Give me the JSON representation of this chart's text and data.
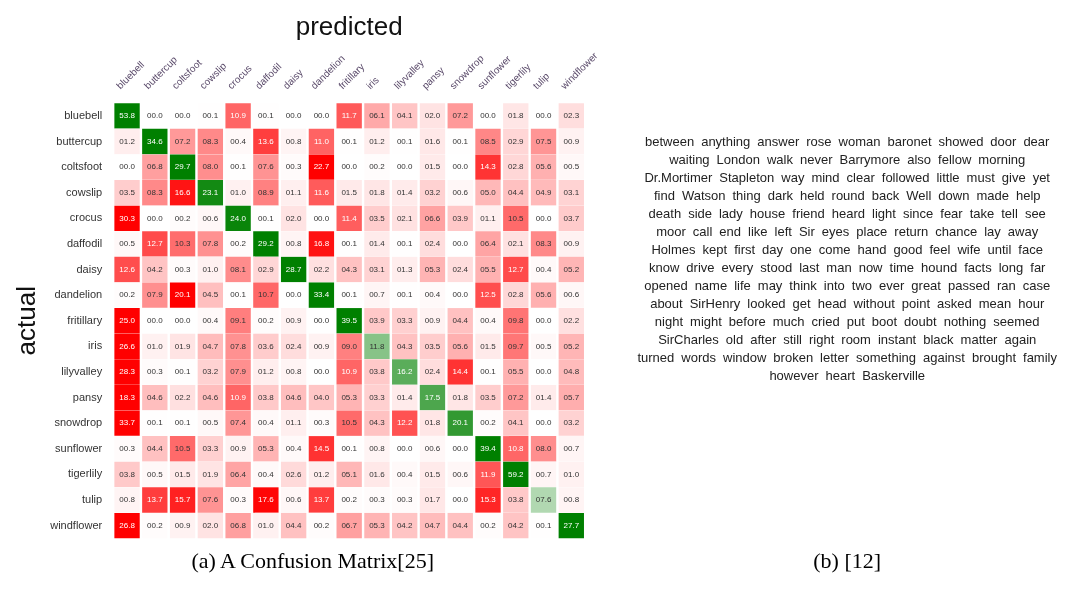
{
  "chart_data": [
    {
      "type": "heatmap",
      "xlabel": "predicted",
      "ylabel": "actual",
      "categories": [
        "bluebell",
        "buttercup",
        "coltsfoot",
        "cowslip",
        "crocus",
        "daffodil",
        "daisy",
        "dandelion",
        "fritillary",
        "iris",
        "lilyvalley",
        "pansy",
        "snowdrop",
        "sunflower",
        "tigerlily",
        "tulip",
        "windflower"
      ],
      "y_categories": [
        "bluebell",
        "buttercup",
        "coltsfoot",
        "cowslip",
        "crocus",
        "daffodil",
        "daisy",
        "dandelion",
        "fritillary",
        "iris",
        "lilyvalley",
        "pansy",
        "snowdrop",
        "sunflower",
        "tigerlily",
        "tulip",
        "windflower"
      ],
      "cells": [
        [
          53.8,
          0.0,
          0.0,
          0.1,
          10.9,
          0.1,
          0.0,
          0.0,
          11.7,
          6.1,
          4.1,
          2.0,
          7.2,
          0.0,
          1.8,
          0.0,
          2.3
        ],
        [
          1.2,
          34.6,
          7.2,
          8.3,
          0.4,
          13.6,
          0.8,
          11.0,
          0.1,
          1.2,
          0.1,
          1.6,
          0.1,
          8.5,
          2.9,
          7.5,
          0.9
        ],
        [
          0.0,
          6.8,
          29.7,
          8.0,
          0.1,
          7.6,
          0.3,
          22.7,
          0.0,
          0.2,
          0.0,
          1.5,
          0.0,
          14.3,
          2.8,
          5.6,
          0.5
        ],
        [
          3.5,
          8.3,
          16.6,
          23.1,
          1.0,
          8.9,
          1.1,
          11.6,
          1.5,
          1.8,
          1.4,
          3.2,
          0.6,
          5.0,
          4.4,
          4.9,
          3.1
        ],
        [
          30.3,
          0.0,
          0.2,
          0.6,
          24.0,
          0.1,
          2.0,
          0.0,
          11.4,
          3.5,
          2.1,
          6.6,
          3.9,
          1.1,
          10.5,
          0.0,
          3.7
        ],
        [
          0.5,
          12.7,
          10.3,
          7.8,
          0.2,
          29.2,
          0.8,
          16.8,
          0.1,
          1.4,
          0.1,
          2.4,
          0.0,
          6.4,
          2.1,
          8.3,
          0.9
        ],
        [
          12.6,
          4.2,
          0.3,
          1.0,
          8.1,
          2.9,
          28.7,
          2.2,
          4.3,
          3.1,
          1.3,
          5.3,
          2.4,
          5.5,
          12.7,
          0.4,
          5.2
        ],
        [
          0.2,
          7.9,
          20.1,
          4.5,
          0.1,
          10.7,
          0.0,
          33.4,
          0.1,
          0.7,
          0.1,
          0.4,
          0.0,
          12.5,
          2.8,
          5.6,
          0.6
        ],
        [
          25.0,
          0.0,
          0.0,
          0.4,
          9.1,
          0.2,
          0.9,
          0.0,
          39.5,
          3.9,
          3.3,
          0.9,
          4.4,
          0.4,
          9.8,
          0.0,
          2.2
        ],
        [
          26.6,
          1.0,
          1.9,
          4.7,
          7.8,
          3.6,
          2.4,
          0.9,
          9.0,
          11.8,
          4.3,
          3.5,
          5.6,
          1.5,
          9.7,
          0.5,
          5.2
        ],
        [
          28.3,
          0.3,
          0.1,
          3.2,
          7.9,
          1.2,
          0.8,
          0.0,
          10.9,
          3.8,
          16.2,
          2.4,
          14.4,
          0.1,
          5.5,
          0.0,
          4.8
        ],
        [
          18.3,
          4.6,
          2.2,
          4.6,
          10.9,
          3.8,
          4.6,
          4.0,
          5.3,
          3.3,
          1.4,
          17.5,
          1.8,
          3.5,
          7.2,
          1.4,
          5.7
        ],
        [
          33.7,
          0.1,
          0.1,
          0.5,
          7.4,
          0.4,
          1.1,
          0.3,
          10.5,
          4.3,
          12.2,
          1.8,
          20.1,
          0.2,
          4.1,
          0.0,
          3.2
        ],
        [
          0.3,
          4.4,
          10.5,
          3.3,
          0.9,
          5.3,
          0.4,
          14.5,
          0.1,
          0.8,
          0.0,
          0.6,
          0.0,
          39.4,
          10.8,
          8.0,
          0.7
        ],
        [
          3.8,
          0.5,
          1.5,
          1.9,
          6.4,
          0.4,
          2.6,
          1.2,
          5.1,
          1.6,
          0.4,
          1.5,
          0.6,
          11.9,
          59.2,
          0.7,
          1.0
        ],
        [
          0.8,
          13.7,
          15.7,
          7.6,
          0.3,
          17.6,
          0.6,
          13.7,
          0.2,
          0.3,
          0.3,
          1.7,
          0.0,
          15.3,
          3.8,
          7.6,
          0.8
        ],
        [
          26.8,
          0.2,
          0.9,
          2.0,
          6.8,
          1.0,
          4.4,
          0.2,
          6.7,
          5.3,
          4.2,
          4.7,
          4.4,
          0.2,
          4.2,
          0.1,
          27.7
        ]
      ],
      "cell_labels": [
        [
          "53.8",
          "00.0",
          "00.0",
          "00.1",
          "10.9",
          "00.1",
          "00.0",
          "00.0",
          "11.7",
          "06.1",
          "04.1",
          "02.0",
          "07.2",
          "00.0",
          "01.8",
          "00.0",
          "02.3"
        ],
        [
          "01.2",
          "34.6",
          "07.2",
          "08.3",
          "00.4",
          "13.6",
          "00.8",
          "11.0",
          "00.1",
          "01.2",
          "00.1",
          "01.6",
          "00.1",
          "08.5",
          "02.9",
          "07.5",
          "00.9"
        ],
        [
          "00.0",
          "06.8",
          "29.7",
          "08.0",
          "00.1",
          "07.6",
          "00.3",
          "22.7",
          "00.0",
          "00.2",
          "00.0",
          "01.5",
          "00.0",
          "14.3",
          "02.8",
          "05.6",
          "00.5"
        ],
        [
          "03.5",
          "08.3",
          "16.6",
          "23.1",
          "01.0",
          "08.9",
          "01.1",
          "11.6",
          "01.5",
          "01.8",
          "01.4",
          "03.2",
          "00.6",
          "05.0",
          "04.4",
          "04.9",
          "03.1"
        ],
        [
          "30.3",
          "00.0",
          "00.2",
          "00.6",
          "24.0",
          "00.1",
          "02.0",
          "00.0",
          "11.4",
          "03.5",
          "02.1",
          "06.6",
          "03.9",
          "01.1",
          "10.5",
          "00.0",
          "03.7"
        ],
        [
          "00.5",
          "12.7",
          "10.3",
          "07.8",
          "00.2",
          "29.2",
          "00.8",
          "16.8",
          "00.1",
          "01.4",
          "00.1",
          "02.4",
          "00.0",
          "06.4",
          "02.1",
          "08.3",
          "00.9"
        ],
        [
          "12.6",
          "04.2",
          "00.3",
          "01.0",
          "08.1",
          "02.9",
          "28.7",
          "02.2",
          "04.3",
          "03.1",
          "01.3",
          "05.3",
          "02.4",
          "05.5",
          "12.7",
          "00.4",
          "05.2"
        ],
        [
          "00.2",
          "07.9",
          "20.1",
          "04.5",
          "00.1",
          "10.7",
          "00.0",
          "33.4",
          "00.1",
          "00.7",
          "00.1",
          "00.4",
          "00.0",
          "12.5",
          "02.8",
          "05.6",
          "00.6"
        ],
        [
          "25.0",
          "00.0",
          "00.0",
          "00.4",
          "09.1",
          "00.2",
          "00.9",
          "00.0",
          "39.5",
          "03.9",
          "03.3",
          "00.9",
          "04.4",
          "00.4",
          "09.8",
          "00.0",
          "02.2"
        ],
        [
          "26.6",
          "01.0",
          "01.9",
          "04.7",
          "07.8",
          "03.6",
          "02.4",
          "00.9",
          "09.0",
          "11.8",
          "04.3",
          "03.5",
          "05.6",
          "01.5",
          "09.7",
          "00.5",
          "05.2"
        ],
        [
          "28.3",
          "00.3",
          "00.1",
          "03.2",
          "07.9",
          "01.2",
          "00.8",
          "00.0",
          "10.9",
          "03.8",
          "16.2",
          "02.4",
          "14.4",
          "00.1",
          "05.5",
          "00.0",
          "04.8"
        ],
        [
          "18.3",
          "04.6",
          "02.2",
          "04.6",
          "10.9",
          "03.8",
          "04.6",
          "04.0",
          "05.3",
          "03.3",
          "01.4",
          "17.5",
          "01.8",
          "03.5",
          "07.2",
          "01.4",
          "05.7"
        ],
        [
          "33.7",
          "00.1",
          "00.1",
          "00.5",
          "07.4",
          "00.4",
          "01.1",
          "00.3",
          "10.5",
          "04.3",
          "12.2",
          "01.8",
          "20.1",
          "00.2",
          "04.1",
          "00.0",
          "03.2"
        ],
        [
          "00.3",
          "04.4",
          "10.5",
          "03.3",
          "00.9",
          "05.3",
          "00.4",
          "14.5",
          "00.1",
          "00.8",
          "00.0",
          "00.6",
          "00.0",
          "39.4",
          "10.8",
          "08.0",
          "00.7"
        ],
        [
          "03.8",
          "00.5",
          "01.5",
          "01.9",
          "06.4",
          "00.4",
          "02.6",
          "01.2",
          "05.1",
          "01.6",
          "00.4",
          "01.5",
          "00.6",
          "11.9",
          "59.2",
          "00.7",
          "01.0"
        ],
        [
          "00.8",
          "13.7",
          "15.7",
          "07.6",
          "00.3",
          "17.6",
          "00.6",
          "13.7",
          "00.2",
          "00.3",
          "00.3",
          "01.7",
          "00.0",
          "15.3",
          "03.8",
          "07.6",
          "00.8"
        ],
        [
          "26.8",
          "00.2",
          "00.9",
          "02.0",
          "06.8",
          "01.0",
          "04.4",
          "00.2",
          "06.7",
          "05.3",
          "04.2",
          "04.7",
          "04.4",
          "00.2",
          "04.2",
          "00.1",
          "27.7"
        ]
      ],
      "annotations": [
        "(a) A Confusion Matrix[25]"
      ]
    },
    {
      "type": "other",
      "title": "(b) [12]",
      "annotations": [
        "between",
        "anything",
        "answer",
        "rose",
        "woman",
        "baronet",
        "showed",
        "door",
        "dear",
        "waiting",
        "London",
        "walk",
        "never",
        "Barrymore",
        "also",
        "fellow",
        "morning",
        "Dr.Mortimer",
        "Stapleton",
        "way",
        "mind",
        "clear",
        "followed",
        "little",
        "must",
        "give",
        "yet",
        "find",
        "Watson",
        "thing",
        "dark",
        "held",
        "round",
        "back",
        "Well",
        "down",
        "made",
        "help",
        "death",
        "side",
        "lady",
        "house",
        "friend",
        "heard",
        "light",
        "since",
        "fear",
        "take",
        "tell",
        "see",
        "moor",
        "call",
        "end",
        "like",
        "left",
        "Sir",
        "eyes",
        "place",
        "return",
        "chance",
        "lay",
        "away",
        "Holmes",
        "kept",
        "first",
        "day",
        "one",
        "come",
        "hand",
        "good",
        "feel",
        "wife",
        "until",
        "face",
        "know",
        "drive",
        "every",
        "stood",
        "last",
        "man",
        "now",
        "time",
        "hound",
        "facts",
        "long",
        "far",
        "opened",
        "name",
        "life",
        "may",
        "think",
        "into",
        "two",
        "ever",
        "great",
        "passed",
        "ran",
        "case",
        "about",
        "SirHenry",
        "looked",
        "get",
        "head",
        "without",
        "point",
        "asked",
        "mean",
        "hour",
        "night",
        "might",
        "before",
        "much",
        "cried",
        "put",
        "boot",
        "doubt",
        "nothing",
        "seemed",
        "SirCharles",
        "old",
        "after",
        "still",
        "right",
        "room",
        "instant",
        "black",
        "matter",
        "again",
        "turned",
        "words",
        "window",
        "broken",
        "letter",
        "something",
        "against",
        "brought",
        "family",
        "however",
        "heart",
        "Baskerville"
      ]
    }
  ]
}
